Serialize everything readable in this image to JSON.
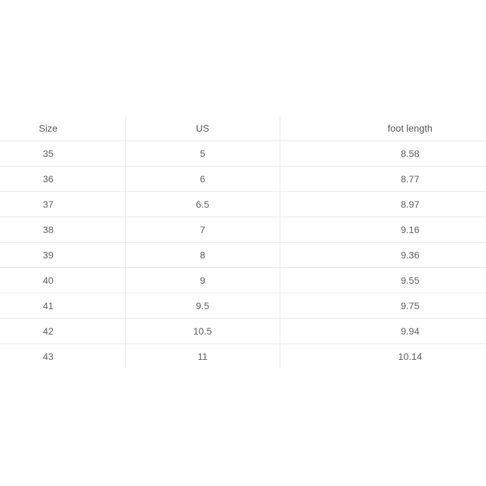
{
  "page": {
    "background": "#ffffff"
  },
  "table": {
    "headers": [
      "Size",
      "US",
      "foot length"
    ],
    "rows": [
      [
        "35",
        "5",
        "8.58"
      ],
      [
        "36",
        "6",
        "8.77"
      ],
      [
        "37",
        "6.5",
        "8.97"
      ],
      [
        "38",
        "7",
        "9.16"
      ],
      [
        "39",
        "8",
        "9.36"
      ],
      [
        "40",
        "9",
        "9.55"
      ],
      [
        "41",
        "9.5",
        "9.75"
      ],
      [
        "42",
        "10.5",
        "9.94"
      ],
      [
        "43",
        "11",
        "10.14"
      ]
    ],
    "colors": {
      "border": "#e8e8e8",
      "header_text": "#555555",
      "body_text": "#5f5f5f"
    }
  }
}
